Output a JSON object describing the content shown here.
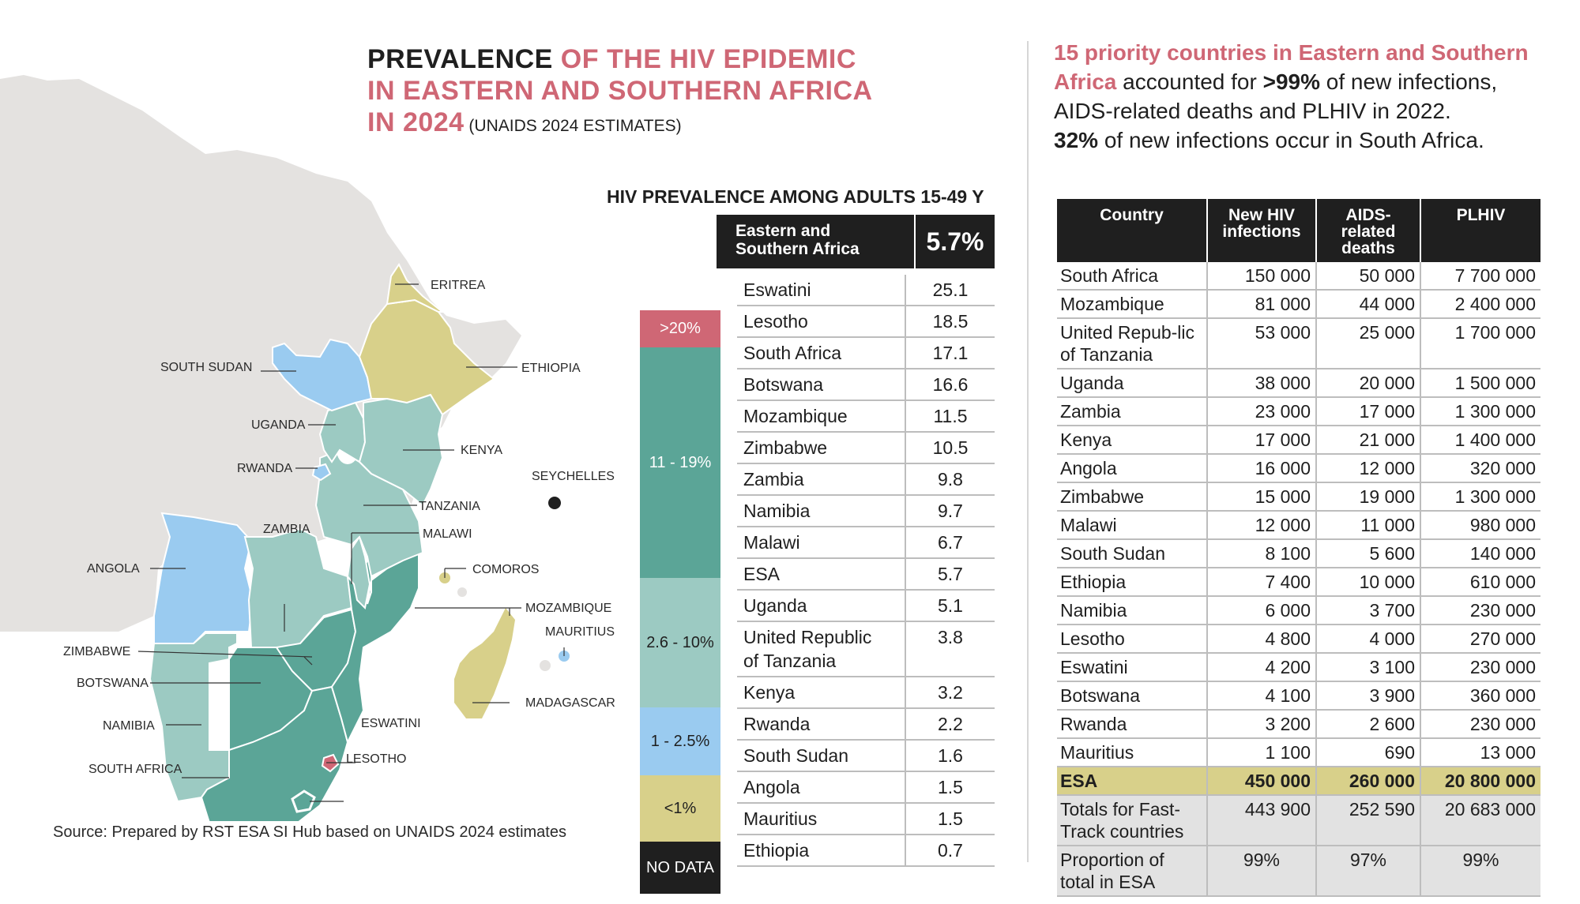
{
  "title": {
    "part1": "PREVALENCE",
    "part2": " OF THE HIV EPIDEMIC",
    "part3": "IN EASTERN AND SOUTHERN AFRICA",
    "part4": "IN 2024",
    "part5": " (UNAIDS 2024 ESTIMATES)"
  },
  "colors": {
    "pink": "#cf6775",
    "high": "#cf6775",
    "mid_high": "#5ba597",
    "mid": "#9ccac2",
    "low": "#9acbf0",
    "very_low": "#d8d08a",
    "no_data": "#1f1f1f",
    "land": "#e4e2e0"
  },
  "map": {
    "labels": {
      "eritrea": "ERITREA",
      "ethiopia": "ETHIOPIA",
      "south_sudan": "SOUTH SUDAN",
      "uganda": "UGANDA",
      "kenya": "KENYA",
      "rwanda": "RWANDA",
      "seychelles": "SEYCHELLES",
      "tanzania": "TANZANIA",
      "zambia": "ZAMBIA",
      "malawi": "MALAWI",
      "comoros": "COMOROS",
      "angola": "ANGOLA",
      "mozambique": "MOZAMBIQUE",
      "mauritius": "MAURITIUS",
      "zimbabwe": "ZIMBABWE",
      "botswana": "BOTSWANA",
      "madagascar": "MADAGASCAR",
      "namibia": "NAMIBIA",
      "eswatini": "ESWATINI",
      "lesotho": "LESOTHO",
      "south_africa": "SOUTH AFRICA"
    }
  },
  "source": "Source: Prepared by RST ESA SI Hub based on UNAIDS 2024 estimates",
  "prevalence": {
    "heading": "HIV PREVALENCE AMONG ADULTS 15-49 Y",
    "region_label_1": "Eastern and",
    "region_label_2": "Southern Africa",
    "region_value": "5.7%",
    "legend": [
      ">20%",
      "11 - 19%",
      "2.6 - 10%",
      "1 - 2.5%",
      "<1%",
      "NO DATA"
    ],
    "rows": [
      {
        "country": "Eswatini",
        "value": "25.1"
      },
      {
        "country": "Lesotho",
        "value": "18.5"
      },
      {
        "country": "South Africa",
        "value": "17.1"
      },
      {
        "country": "Botswana",
        "value": "16.6"
      },
      {
        "country": "Mozambique",
        "value": "11.5"
      },
      {
        "country": "Zimbabwe",
        "value": "10.5"
      },
      {
        "country": "Zambia",
        "value": "9.8"
      },
      {
        "country": "Namibia",
        "value": "9.7"
      },
      {
        "country": "Malawi",
        "value": "6.7"
      },
      {
        "country": "ESA",
        "value": "5.7"
      },
      {
        "country": "Uganda",
        "value": "5.1"
      },
      {
        "country": "United Republic of Tanzania",
        "value": "3.8"
      },
      {
        "country": "Kenya",
        "value": "3.2"
      },
      {
        "country": "Rwanda",
        "value": "2.2"
      },
      {
        "country": "South Sudan",
        "value": "1.6"
      },
      {
        "country": "Angola",
        "value": "1.5"
      },
      {
        "country": "Mauritius",
        "value": "1.5"
      },
      {
        "country": "Ethiopia",
        "value": "0.7"
      }
    ]
  },
  "summary": {
    "pink_part": "15 priority countries in Eastern and Southern Africa",
    "text1": " accounted for ",
    "bold1": ">99%",
    "text2": " of new infections, AIDS-related deaths and PLHIV in 2022.",
    "bold2": "32%",
    "text3": " of new infections occur in South Africa."
  },
  "table": {
    "headers": [
      "Country",
      "New HIV infections",
      "AIDS-related deaths",
      "PLHIV"
    ],
    "rows": [
      [
        "South Africa",
        "150 000",
        "50 000",
        "7 700 000"
      ],
      [
        "Mozambique",
        "81 000",
        "44 000",
        "2 400 000"
      ],
      [
        "United Repub-lic of Tanzania",
        "53 000",
        "25 000",
        "1 700 000"
      ],
      [
        "Uganda",
        "38 000",
        "20 000",
        "1 500 000"
      ],
      [
        "Zambia",
        "23 000",
        "17 000",
        "1 300 000"
      ],
      [
        "Kenya",
        "17 000",
        "21 000",
        "1 400 000"
      ],
      [
        "Angola",
        "16 000",
        "12 000",
        "320 000"
      ],
      [
        "Zimbabwe",
        "15 000",
        "19 000",
        "1 300 000"
      ],
      [
        "Malawi",
        "12 000",
        "11 000",
        "980 000"
      ],
      [
        "South Sudan",
        "8 100",
        "5 600",
        "140 000"
      ],
      [
        "Ethiopia",
        "7 400",
        "10 000",
        "610 000"
      ],
      [
        "Namibia",
        "6 000",
        "3 700",
        "230 000"
      ],
      [
        "Lesotho",
        "4 800",
        "4 000",
        "270 000"
      ],
      [
        "Eswatini",
        "4 200",
        "3 100",
        "230 000"
      ],
      [
        "Botswana",
        "4 100",
        "3 900",
        "360 000"
      ],
      [
        "Rwanda",
        "3 200",
        "2 600",
        "230 000"
      ],
      [
        "Mauritius",
        "1 100",
        "690",
        "13 000"
      ]
    ],
    "esa_row": [
      "ESA",
      "450 000",
      "260 000",
      "20 800 000"
    ],
    "totals_row": [
      "Totals for Fast-Track countries",
      "443 900",
      "252 590",
      "20 683 000"
    ],
    "proportion_row": [
      "Proportion of total in ESA",
      "99%",
      "97%",
      "99%"
    ]
  }
}
